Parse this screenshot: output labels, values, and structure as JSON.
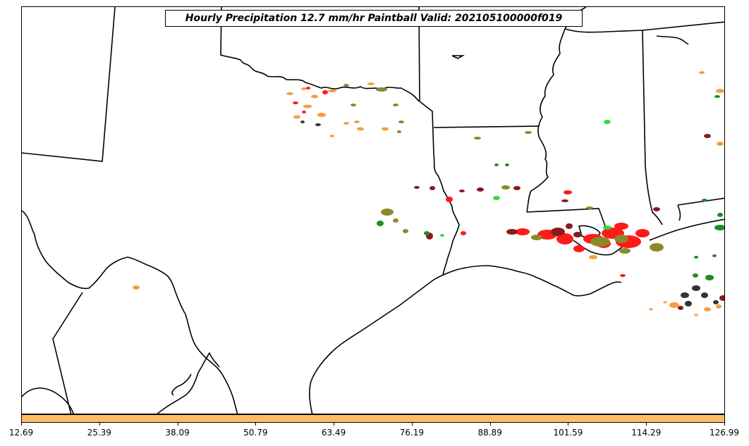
{
  "title": "Hourly Precipitation 12.7 mm/hr Paintball Valid: 202105100000f019",
  "colorbar": {
    "color": "#fdbf61",
    "ticks": [
      "12.69",
      "25.39",
      "38.09",
      "50.79",
      "63.49",
      "76.19",
      "88.89",
      "101.59",
      "114.29",
      "126.99"
    ],
    "range": [
      12.69,
      126.99
    ]
  },
  "map": {
    "boundary_color": "#000000",
    "paintball_colors": {
      "orange": "#f5a040",
      "red": "#ff1a1a",
      "olive": "#8a8a2a",
      "dark_red": "#8b1a1a",
      "green": "#228b22",
      "bright_green": "#33dd33",
      "dark_gray": "#333333",
      "light_orange": "#fdae6b"
    }
  }
}
